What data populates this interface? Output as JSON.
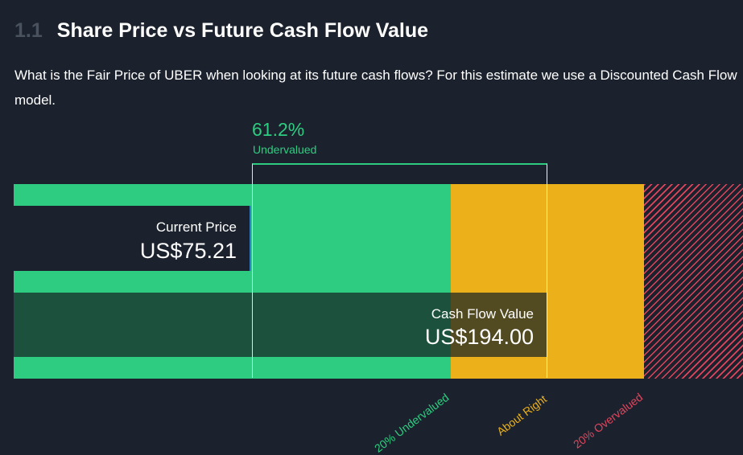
{
  "section": {
    "number": "1.1",
    "title": "Share Price vs Future Cash Flow Value",
    "description": "What is the Fair Price of UBER when looking at its future cash flows? For this estimate we use a Discounted Cash Flow model."
  },
  "valuation": {
    "discount_percent": "61.2%",
    "discount_label": "Undervalued",
    "current_price": {
      "label": "Current Price",
      "value": "US$75.21",
      "amount": 75.21
    },
    "cash_flow_value": {
      "label": "Cash Flow Value",
      "value": "US$194.00",
      "amount": 194.0
    },
    "zones": [
      {
        "label": "20% Undervalued",
        "color": "#2ecc80"
      },
      {
        "label": "About Right",
        "color": "#ecb11a"
      },
      {
        "label": "20% Overvalued",
        "color": "#e2445c"
      }
    ]
  },
  "colors": {
    "background": "#1b222d",
    "undervalued": "#2ecc80",
    "about_right": "#ecb11a",
    "overvalued": "#e2445c"
  }
}
